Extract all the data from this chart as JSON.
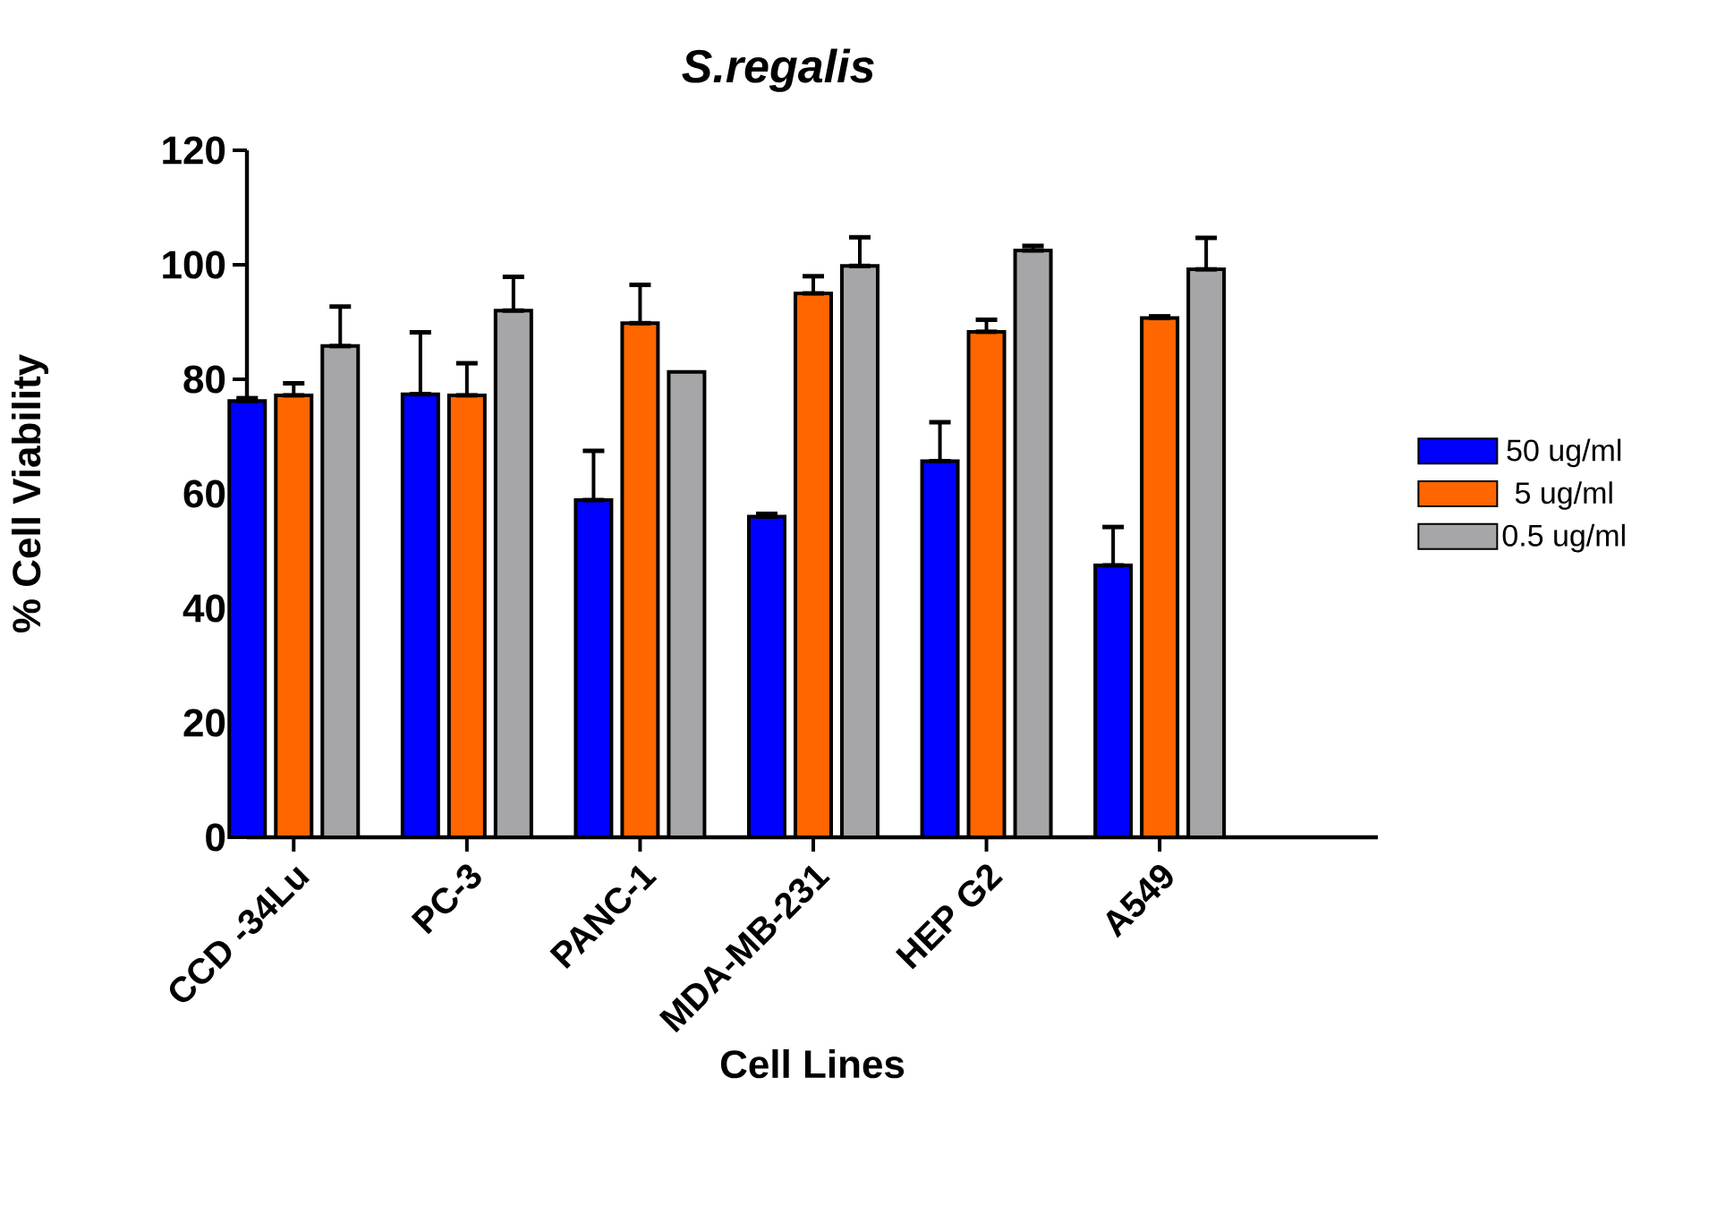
{
  "chart_data": {
    "type": "bar",
    "title": "S.regalis",
    "xlabel": "Cell Lines",
    "ylabel": "% Cell Viability",
    "categories": [
      "CCD -34Lu",
      "PC-3",
      "PANC-1",
      "MDA-MB-231",
      "HEP G2",
      "A549"
    ],
    "series": [
      {
        "name": "50 ug/ml",
        "color": "#0000ff",
        "values": [
          76.2,
          77.4,
          58.9,
          56.0,
          65.7,
          47.5
        ],
        "errors": [
          [
            76.2,
            76.7
          ],
          [
            77.4,
            88.2
          ],
          [
            58.9,
            67.5
          ],
          [
            56.0,
            56.5
          ],
          [
            65.7,
            72.5
          ],
          [
            47.5,
            54.2
          ]
        ]
      },
      {
        "name": "5 ug/ml",
        "color": "#ff6600",
        "values": [
          77.2,
          77.2,
          89.8,
          95.0,
          88.3,
          90.7
        ],
        "errors": [
          [
            77.2,
            79.3
          ],
          [
            77.2,
            82.8
          ],
          [
            89.8,
            96.5
          ],
          [
            95.0,
            98.0
          ],
          [
            88.3,
            90.4
          ],
          [
            90.7,
            91.0
          ]
        ]
      },
      {
        "name": "0.5 ug/ml",
        "color": "#a6a6a8",
        "values": [
          85.8,
          92.0,
          81.3,
          99.8,
          102.5,
          99.2
        ],
        "errors": [
          [
            85.8,
            92.7
          ],
          [
            92.0,
            97.9
          ],
          null,
          [
            99.8,
            104.8
          ],
          [
            102.5,
            103.3
          ],
          [
            99.2,
            104.7
          ]
        ]
      }
    ],
    "ylim": [
      0,
      120
    ],
    "yticks": [
      0,
      20,
      40,
      60,
      80,
      100,
      120
    ],
    "legend": "right",
    "grid": false
  }
}
